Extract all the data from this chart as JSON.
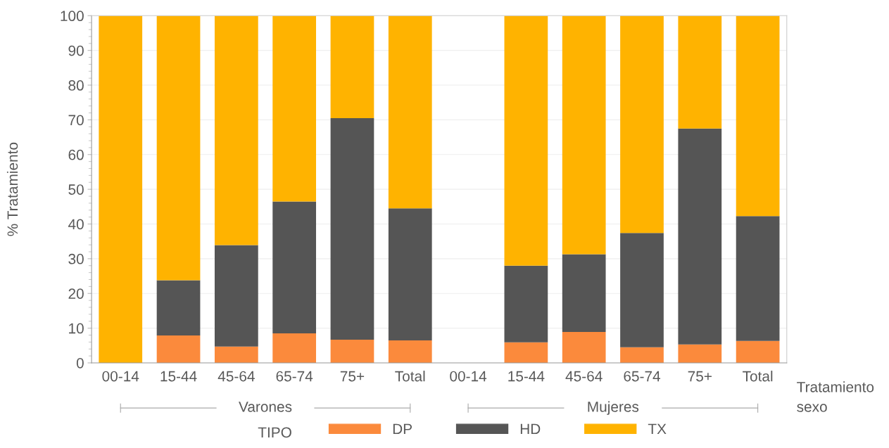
{
  "chart_data": {
    "type": "bar",
    "stacked": true,
    "categories": [
      "00-14",
      "15-44",
      "45-64",
      "65-74",
      "75+",
      "Total",
      "00-14",
      "15-44",
      "45-64",
      "65-74",
      "75+",
      "Total"
    ],
    "series": [
      {
        "name": "DP",
        "color": "#fb8a3c",
        "values": [
          0,
          7.9,
          4.7,
          8.5,
          6.7,
          6.5,
          null,
          5.9,
          8.9,
          4.5,
          5.3,
          6.3
        ]
      },
      {
        "name": "HD",
        "color": "#555555",
        "values": [
          0,
          15.9,
          29.2,
          38.0,
          63.8,
          38.0,
          null,
          22.1,
          22.4,
          32.9,
          62.2,
          36.0
        ]
      },
      {
        "name": "TX",
        "color": "#ffb300",
        "values": [
          100,
          76.2,
          66.1,
          53.5,
          29.5,
          55.5,
          null,
          72.0,
          68.7,
          62.6,
          32.5,
          57.7
        ]
      }
    ],
    "xlabel": "Tratamiento",
    "ylabel": "% Tratamiento",
    "legend_title": "TIPO",
    "annotations": [
      "Varones",
      "Mujeres",
      "sexo"
    ],
    "ylim": [
      0,
      100
    ],
    "yticks": [
      0,
      10,
      20,
      30,
      40,
      50,
      60,
      70,
      80,
      90,
      100
    ],
    "grid": "y",
    "legend": "bottom"
  }
}
